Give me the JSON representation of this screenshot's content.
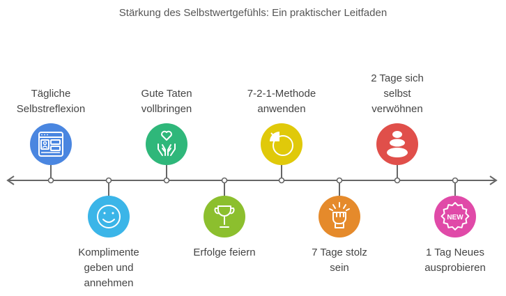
{
  "title": "Stärkung des Selbstwertgefühls: Ein praktischer Leitfaden",
  "steps": [
    {
      "label": "Tägliche\nSelbstreflexion",
      "color": "#4a86e0",
      "icon": "calendar-dashboard-icon"
    },
    {
      "label": "Komplimente\ngeben und\nannehmen",
      "color": "#3bb5e8",
      "icon": "smiley-icon"
    },
    {
      "label": "Gute Taten\nvollbringen",
      "color": "#2fb77a",
      "icon": "hands-heart-icon"
    },
    {
      "label": "Erfolge feiern",
      "color": "#8cbf2e",
      "icon": "trophy-icon"
    },
    {
      "label": "7-2-1-Methode\nanwenden",
      "color": "#e0c90a",
      "icon": "pie-chart-icon"
    },
    {
      "label": "7 Tage stolz\nsein",
      "color": "#e58a2b",
      "icon": "raised-fist-icon"
    },
    {
      "label": "2 Tage sich\nselbst\nverwöhnen",
      "color": "#e04f4a",
      "icon": "stacked-stones-icon"
    },
    {
      "label": "1 Tag Neues\nausprobieren",
      "color": "#e04aa8",
      "icon": "new-badge-icon",
      "badge_text": "NEW"
    }
  ],
  "line_color": "#666666"
}
